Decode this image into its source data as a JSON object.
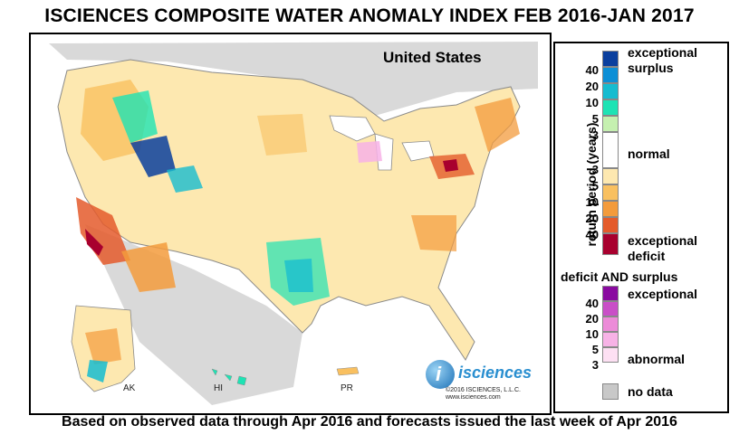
{
  "title": "ISCIENCES COMPOSITE WATER ANOMALY INDEX FEB 2016-JAN 2017",
  "map": {
    "region_label": "United States",
    "insets": [
      "AK",
      "HI",
      "PR"
    ]
  },
  "brand": {
    "logo_letter": "i",
    "name": "isciences",
    "copyright": "©2016  ISCIENCES, L.L.C.",
    "url": "www.isciences.com"
  },
  "legend": {
    "axis_label": "return period (years)",
    "surplus_label_1": "exceptional",
    "surplus_label_2": "surplus",
    "normal_label": "normal",
    "deficit_label_1": "exceptional",
    "deficit_label_2": "deficit",
    "both_title": "deficit AND surplus",
    "both_top_label": "exceptional",
    "both_bottom_label": "abnormal",
    "nodata_label": "no data",
    "surplus_ticks": [
      "40",
      "20",
      "10",
      "5",
      "3"
    ],
    "deficit_ticks": [
      "3",
      "5",
      "10",
      "20",
      "40"
    ],
    "both_ticks": [
      "40",
      "20",
      "10",
      "5",
      "3"
    ],
    "surplus_colors": [
      "#0a3f9e",
      "#0d8fd6",
      "#16bcd0",
      "#1ee3b4",
      "#c5f0b0"
    ],
    "normal_color": "#ffffff",
    "deficit_colors": [
      "#fde8b0",
      "#f9c060",
      "#f39b3c",
      "#e45b2b",
      "#a8002e"
    ],
    "both_colors": [
      "#8a0aa0",
      "#c94fc7",
      "#ec8bd8",
      "#f7b2e6",
      "#fde0f3"
    ],
    "nodata_color": "#c8c8c8"
  },
  "footer": "Based on observed data through Apr 2016 and forecasts issued the last week of Apr 2016"
}
